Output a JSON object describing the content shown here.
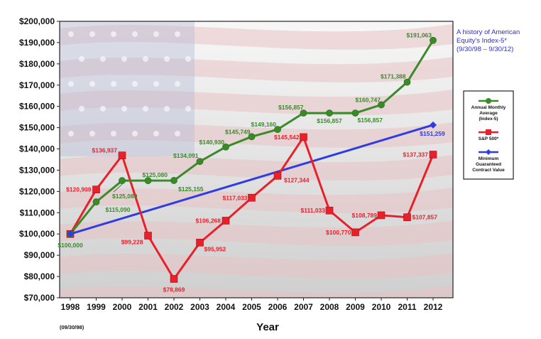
{
  "chart_data": {
    "type": "line",
    "title_lines": [
      "A history of American",
      "Equity's Index-5*",
      "(9/30/98 – 9/30/12)"
    ],
    "xlabel": "Year",
    "x_sublabel": "(09/30/98)",
    "ylabel": "",
    "categories": [
      "1998",
      "1999",
      "2000",
      "2001",
      "2002",
      "2003",
      "2004",
      "2005",
      "2006",
      "2007",
      "2008",
      "2009",
      "2010",
      "2011",
      "2012"
    ],
    "ylim": [
      70000,
      200000
    ],
    "y_ticks": [
      "$70,000",
      "$80,000",
      "$90,000",
      "$100,000",
      "$110,000",
      "$120,000",
      "$130,000",
      "$140,000",
      "$150,000",
      "$160,000",
      "$170,000",
      "$180,000",
      "$190,000",
      "$200,000"
    ],
    "grid": false,
    "legend_position": "right",
    "series": [
      {
        "name": "Annual Monthly Average (Index-5)",
        "legend_lines": [
          "Annual Monthly",
          "Average",
          "(Index-5)"
        ],
        "color": "#3a8a2a",
        "marker": "circle",
        "values": [
          100000,
          115090,
          125080,
          125080,
          125155,
          134091,
          140930,
          145749,
          149160,
          156857,
          156857,
          156857,
          160747,
          171388,
          191063
        ],
        "labels": [
          "$100,000",
          "$115,090",
          "$125,080",
          "$125,080",
          "$125,155",
          "$134,091",
          "$140,930",
          "$145,749",
          "$149,160",
          "$156,857",
          "$156,857",
          "$156,857",
          "$160,747",
          "$171,388",
          "$191,063"
        ]
      },
      {
        "name": "S&P 500*",
        "legend_lines": [
          "S&P 500*"
        ],
        "color": "#e8202a",
        "marker": "square",
        "values": [
          100000,
          120909,
          136937,
          99228,
          78869,
          95952,
          106268,
          117033,
          127344,
          145542,
          111033,
          100770,
          108789,
          107857,
          137337
        ],
        "labels": [
          "",
          "$120,909",
          "$136,937",
          "$99,228",
          "$78,869",
          "$95,952",
          "$106,268",
          "$117,033",
          "$127,344",
          "$145,542",
          "$111,033",
          "$100,770",
          "$108,789",
          "$107,857",
          "$137,337"
        ]
      },
      {
        "name": "Minimum Guaranteed Contract Value",
        "legend_lines": [
          "Minimum",
          "Guaranteed",
          "Contract Value"
        ],
        "color": "#2f3de0",
        "marker": "diamond",
        "points": [
          {
            "x": "1998",
            "y": 100000,
            "label": ""
          },
          {
            "x": "2012",
            "y": 151259,
            "label": "$151,259"
          }
        ]
      }
    ]
  },
  "colors": {
    "plot_background_top": "#f7f7f7",
    "plot_background_bottom": "#cfcfcf",
    "flag_stripe": "#e7c2c4",
    "flag_canton": "#b9bcd6"
  }
}
